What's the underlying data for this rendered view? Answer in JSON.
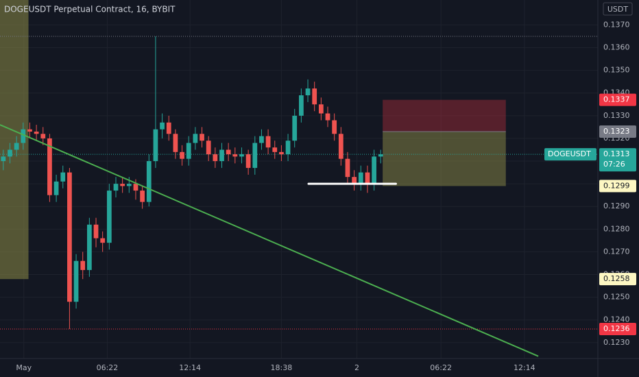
{
  "chart_data": {
    "type": "candlestick",
    "title": "DOGEUSDT Perpetual Contract, 16, BYBIT",
    "currency": "USDT",
    "symbol": "DOGEUSDT",
    "countdown": "07:26",
    "up_color": "#26a69a",
    "down_color": "#ef5350",
    "grid": true,
    "open": [
      0.131,
      0.1312,
      0.1315,
      0.1318,
      0.1324,
      0.1323,
      0.1322,
      0.132,
      0.1295,
      0.1301,
      0.1305,
      0.1248,
      0.1266,
      0.1262,
      0.1282,
      0.1276,
      0.1274,
      0.1297,
      0.13,
      0.1299,
      0.13,
      0.1297,
      0.1292,
      0.131,
      0.1324,
      0.1327,
      0.1322,
      0.1314,
      0.1311,
      0.1318,
      0.1322,
      0.1319,
      0.1313,
      0.131,
      0.1315,
      0.1313,
      0.1312,
      0.1313,
      0.1307,
      0.1318,
      0.1321,
      0.1316,
      0.1314,
      0.1313,
      0.1319,
      0.133,
      0.1339,
      0.1342,
      0.1335,
      0.1331,
      0.1328,
      0.1322,
      0.1311,
      0.1303,
      0.13,
      0.1305,
      0.13,
      0.1312
    ],
    "high": [
      0.1315,
      0.1318,
      0.1321,
      0.1327,
      0.1327,
      0.1326,
      0.1325,
      0.1322,
      0.1304,
      0.1308,
      0.1307,
      0.1269,
      0.127,
      0.1285,
      0.1285,
      0.1279,
      0.13,
      0.1303,
      0.1303,
      0.1303,
      0.1302,
      0.1299,
      0.1313,
      0.1365,
      0.1331,
      0.133,
      0.1324,
      0.1317,
      0.1321,
      0.1325,
      0.1325,
      0.1321,
      0.1316,
      0.1318,
      0.1318,
      0.1316,
      0.1316,
      0.1315,
      0.1321,
      0.1324,
      0.1324,
      0.1319,
      0.1317,
      0.1322,
      0.1333,
      0.1342,
      0.1346,
      0.1345,
      0.1338,
      0.1334,
      0.1331,
      0.1325,
      0.1314,
      0.1306,
      0.1308,
      0.1308,
      0.1315,
      0.1315
    ],
    "low": [
      0.1306,
      0.1309,
      0.1312,
      0.1315,
      0.132,
      0.1319,
      0.1317,
      0.1292,
      0.1292,
      0.1298,
      0.1236,
      0.1245,
      0.1258,
      0.1259,
      0.1272,
      0.127,
      0.1271,
      0.1294,
      0.1296,
      0.1296,
      0.1293,
      0.1289,
      0.129,
      0.1307,
      0.132,
      0.1319,
      0.1311,
      0.1308,
      0.1308,
      0.1315,
      0.1316,
      0.131,
      0.1307,
      0.1307,
      0.131,
      0.1309,
      0.1309,
      0.1304,
      0.1304,
      0.1315,
      0.1313,
      0.1311,
      0.131,
      0.131,
      0.1316,
      0.1327,
      0.1336,
      0.1332,
      0.1328,
      0.1325,
      0.1319,
      0.1308,
      0.13,
      0.1297,
      0.1297,
      0.1296,
      0.1297,
      0.1309
    ],
    "close": [
      0.1312,
      0.1315,
      0.1318,
      0.1324,
      0.1323,
      0.1322,
      0.132,
      0.1295,
      0.1301,
      0.1305,
      0.1248,
      0.1266,
      0.1262,
      0.1282,
      0.1276,
      0.1274,
      0.1297,
      0.13,
      0.1299,
      0.13,
      0.1297,
      0.1292,
      0.131,
      0.1324,
      0.1327,
      0.1322,
      0.1314,
      0.1311,
      0.1318,
      0.1322,
      0.1319,
      0.1313,
      0.131,
      0.1315,
      0.1313,
      0.1312,
      0.1313,
      0.1307,
      0.1318,
      0.1321,
      0.1316,
      0.1314,
      0.1313,
      0.1319,
      0.133,
      0.1339,
      0.1342,
      0.1335,
      0.1331,
      0.1328,
      0.1322,
      0.1311,
      0.1303,
      0.13,
      0.1305,
      0.13,
      0.1312,
      0.1313
    ],
    "xlim": [
      -0.5,
      89.8
    ],
    "ylim": [
      0.1223,
      0.1381
    ],
    "xticks": [
      {
        "value": 3.1,
        "label": "May"
      },
      {
        "value": 15.7,
        "label": "06:22"
      },
      {
        "value": 28.2,
        "label": "12:14"
      },
      {
        "value": 42.0,
        "label": "18:38"
      },
      {
        "value": 53.4,
        "label": "2"
      },
      {
        "value": 66.1,
        "label": "06:22"
      },
      {
        "value": 78.7,
        "label": "12:14"
      }
    ],
    "yticks": [
      {
        "value": 0.123,
        "label": "0.1230"
      },
      {
        "value": 0.124,
        "label": "0.1240"
      },
      {
        "value": 0.125,
        "label": "0.1250"
      },
      {
        "value": 0.126,
        "label": "0.1260"
      },
      {
        "value": 0.127,
        "label": "0.1270"
      },
      {
        "value": 0.128,
        "label": "0.1280"
      },
      {
        "value": 0.129,
        "label": "0.1290"
      },
      {
        "value": 0.13,
        "label": "0.1300"
      },
      {
        "value": 0.131,
        "label": "0.1310"
      },
      {
        "value": 0.132,
        "label": "0.1320"
      },
      {
        "value": 0.133,
        "label": "0.1330"
      },
      {
        "value": 0.134,
        "label": "0.1340"
      },
      {
        "value": 0.135,
        "label": "0.1350"
      },
      {
        "value": 0.136,
        "label": "0.1360"
      },
      {
        "value": 0.137,
        "label": "0.1370"
      }
    ],
    "trendline": {
      "x": [
        -0.5,
        80.8
      ],
      "y": [
        0.1326,
        0.1224
      ],
      "color": "#4caf50"
    },
    "zone": {
      "x": [
        -0.5,
        3.8
      ],
      "y": [
        0.1258,
        0.1381
      ],
      "color": "#8c8a45"
    },
    "position": {
      "x": [
        57.3,
        75.9
      ],
      "stop": 0.1337,
      "entry": 0.1323,
      "target": 0.1299
    },
    "support": {
      "x": [
        46.1,
        59.3
      ],
      "value": 0.13,
      "color": "#ffffff"
    },
    "levels": [
      {
        "value": 0.1365,
        "color": "#787b86"
      },
      {
        "value": 0.1236,
        "color": "#f23645"
      }
    ],
    "price_tags": [
      {
        "value": 0.1337,
        "color": "#f23645",
        "text_color": "#ffffff"
      },
      {
        "value": 0.1323,
        "color": "#787b86",
        "text_color": "#ffffff"
      },
      {
        "value": 0.1299,
        "color": "#fdf7c3",
        "text_color": "#131722"
      },
      {
        "value": 0.1258,
        "color": "#fdf7c3",
        "text_color": "#131722"
      },
      {
        "value": 0.1236,
        "color": "#f23645",
        "text_color": "#ffffff"
      }
    ]
  }
}
